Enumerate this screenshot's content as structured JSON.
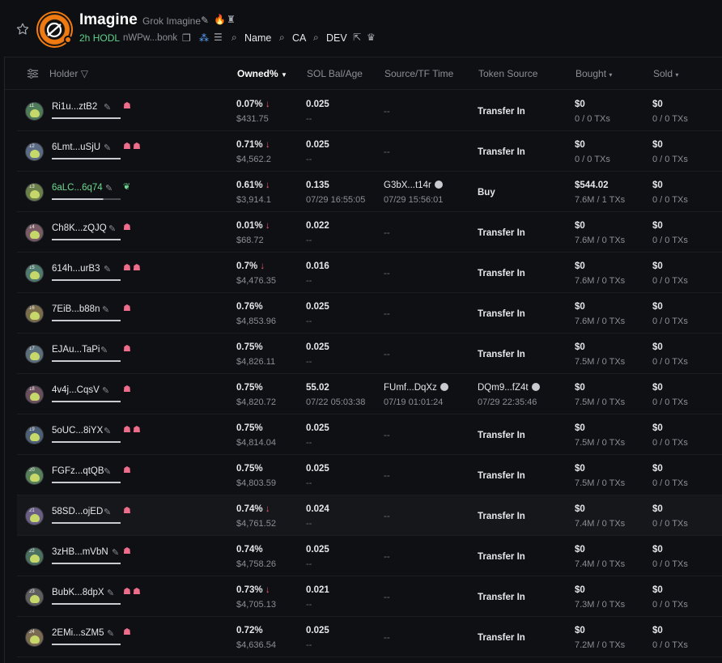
{
  "header": {
    "title": "Imagine",
    "subtitle": "Grok Imagine",
    "age": "2h",
    "hodl": "HODL",
    "address": "nWPw...bonk",
    "links": [
      "Name",
      "CA",
      "DEV"
    ]
  },
  "columns": {
    "holder": "Holder",
    "owned": "Owned%",
    "sol_bal": "SOL Bal/Age",
    "source_tf": "Source/TF Time",
    "token_source": "Token Source",
    "bought": "Bought",
    "sold": "Sold"
  },
  "rows": [
    {
      "rank": "11",
      "name": "Ri1u...ztB2",
      "pct": "0.07%",
      "down": true,
      "usd": "$431.75",
      "sol": "0.025",
      "age": "--",
      "src": "--",
      "src_time": "",
      "tsrc": "Transfer In",
      "tsrc_time": "",
      "bought": "$0",
      "bought_txs": "0 / 0 TXs",
      "sold": "$0",
      "sold_txs": "0 / 0 TXs"
    },
    {
      "rank": "12",
      "name": "6Lmt...uSjU",
      "pct": "0.71%",
      "down": true,
      "usd": "$4,562.2",
      "sol": "0.025",
      "age": "--",
      "src": "--",
      "src_time": "",
      "tsrc": "Transfer In",
      "tsrc_time": "",
      "bought": "$0",
      "bought_txs": "0 / 0 TXs",
      "sold": "$0",
      "sold_txs": "0 / 0 TXs"
    },
    {
      "rank": "13",
      "name": "6aLC...6q74",
      "pct": "0.61%",
      "down": true,
      "usd": "$3,914.1",
      "sol": "0.135",
      "age": "07/29 16:55:05",
      "src": "G3bX...t14r",
      "src_time": "07/29 15:56:01",
      "tsrc": "Buy",
      "tsrc_time": "",
      "bought": "$544.02",
      "bought_txs": "7.6M / 1 TXs",
      "sold": "$0",
      "sold_txs": "0 / 0 TXs"
    },
    {
      "rank": "14",
      "name": "Ch8K...zQJQ",
      "pct": "0.01%",
      "down": true,
      "usd": "$68.72",
      "sol": "0.022",
      "age": "--",
      "src": "--",
      "src_time": "",
      "tsrc": "Transfer In",
      "tsrc_time": "",
      "bought": "$0",
      "bought_txs": "7.6M / 0 TXs",
      "sold": "$0",
      "sold_txs": "0 / 0 TXs"
    },
    {
      "rank": "15",
      "name": "614h...urB3",
      "pct": "0.7%",
      "down": true,
      "usd": "$4,476.35",
      "sol": "0.016",
      "age": "--",
      "src": "--",
      "src_time": "",
      "tsrc": "Transfer In",
      "tsrc_time": "",
      "bought": "$0",
      "bought_txs": "7.6M / 0 TXs",
      "sold": "$0",
      "sold_txs": "0 / 0 TXs"
    },
    {
      "rank": "16",
      "name": "7EiB...b88n",
      "pct": "0.76%",
      "down": false,
      "usd": "$4,853.96",
      "sol": "0.025",
      "age": "--",
      "src": "--",
      "src_time": "",
      "tsrc": "Transfer In",
      "tsrc_time": "",
      "bought": "$0",
      "bought_txs": "7.6M / 0 TXs",
      "sold": "$0",
      "sold_txs": "0 / 0 TXs"
    },
    {
      "rank": "17",
      "name": "EJAu...TaPi",
      "pct": "0.75%",
      "down": false,
      "usd": "$4,826.11",
      "sol": "0.025",
      "age": "--",
      "src": "--",
      "src_time": "",
      "tsrc": "Transfer In",
      "tsrc_time": "",
      "bought": "$0",
      "bought_txs": "7.5M / 0 TXs",
      "sold": "$0",
      "sold_txs": "0 / 0 TXs"
    },
    {
      "rank": "18",
      "name": "4v4j...CqsV",
      "pct": "0.75%",
      "down": false,
      "usd": "$4,820.72",
      "sol": "55.02",
      "age": "07/22 05:03:38",
      "src": "FUmf...DqXz",
      "src_time": "07/19 01:01:24",
      "tsrc": "DQm9...fZ4t",
      "tsrc_time": "07/29 22:35:46",
      "bought": "$0",
      "bought_txs": "7.5M / 0 TXs",
      "sold": "$0",
      "sold_txs": "0 / 0 TXs"
    },
    {
      "rank": "19",
      "name": "5oUC...8iYX",
      "pct": "0.75%",
      "down": false,
      "usd": "$4,814.04",
      "sol": "0.025",
      "age": "--",
      "src": "--",
      "src_time": "",
      "tsrc": "Transfer In",
      "tsrc_time": "",
      "bought": "$0",
      "bought_txs": "7.5M / 0 TXs",
      "sold": "$0",
      "sold_txs": "0 / 0 TXs"
    },
    {
      "rank": "20",
      "name": "FGFz...qtQB",
      "pct": "0.75%",
      "down": false,
      "usd": "$4,803.59",
      "sol": "0.025",
      "age": "--",
      "src": "--",
      "src_time": "",
      "tsrc": "Transfer In",
      "tsrc_time": "",
      "bought": "$0",
      "bought_txs": "7.5M / 0 TXs",
      "sold": "$0",
      "sold_txs": "0 / 0 TXs"
    },
    {
      "rank": "21",
      "name": "58SD...ojED",
      "pct": "0.74%",
      "down": true,
      "usd": "$4,761.52",
      "sol": "0.024",
      "age": "--",
      "src": "--",
      "src_time": "",
      "tsrc": "Transfer In",
      "tsrc_time": "",
      "bought": "$0",
      "bought_txs": "7.4M / 0 TXs",
      "sold": "$0",
      "sold_txs": "0 / 0 TXs"
    },
    {
      "rank": "22",
      "name": "3zHB...mVbN",
      "pct": "0.74%",
      "down": false,
      "usd": "$4,758.26",
      "sol": "0.025",
      "age": "--",
      "src": "--",
      "src_time": "",
      "tsrc": "Transfer In",
      "tsrc_time": "",
      "bought": "$0",
      "bought_txs": "7.4M / 0 TXs",
      "sold": "$0",
      "sold_txs": "0 / 0 TXs"
    },
    {
      "rank": "23",
      "name": "BubK...8dpX",
      "pct": "0.73%",
      "down": true,
      "usd": "$4,705.13",
      "sol": "0.021",
      "age": "--",
      "src": "--",
      "src_time": "",
      "tsrc": "Transfer In",
      "tsrc_time": "",
      "bought": "$0",
      "bought_txs": "7.3M / 0 TXs",
      "sold": "$0",
      "sold_txs": "0 / 0 TXs"
    },
    {
      "rank": "24",
      "name": "2EMi...sZM5",
      "pct": "0.72%",
      "down": false,
      "usd": "$4,636.54",
      "sol": "0.025",
      "age": "--",
      "src": "--",
      "src_time": "",
      "tsrc": "Transfer In",
      "tsrc_time": "",
      "bought": "$0",
      "bought_txs": "7.2M / 0 TXs",
      "sold": "$0",
      "sold_txs": "0 / 0 TXs"
    }
  ]
}
